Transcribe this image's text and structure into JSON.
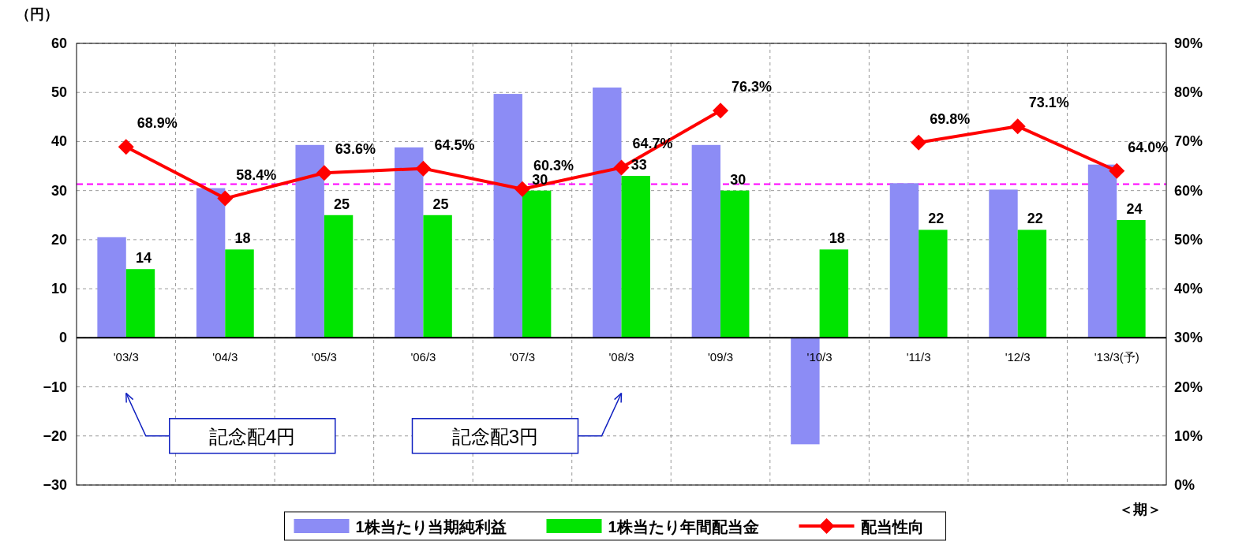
{
  "chart_data": {
    "type": "bar",
    "ylabel": "（円）",
    "xlabel": "＜期＞",
    "categories": [
      "'03/3",
      "'04/3",
      "'05/3",
      "'06/3",
      "'07/3",
      "'08/3",
      "'09/3",
      "'10/3",
      "'11/3",
      "'12/3",
      "'13/3(予)"
    ],
    "series": [
      {
        "name": "1株当たり当期純利益",
        "color": "#8c8cf5",
        "values": [
          20.5,
          30.5,
          39.3,
          38.8,
          49.7,
          51,
          39.3,
          -21.7,
          31.5,
          30.2,
          35.3
        ]
      },
      {
        "name": "1株当たり年間配当金",
        "color": "#00e400",
        "values": [
          14,
          18,
          25,
          25,
          30,
          33,
          30,
          18,
          22,
          22,
          24
        ],
        "value_labels": [
          "14",
          "18",
          "25",
          "25",
          "30",
          "33",
          "30",
          "18",
          "22",
          "22",
          "24"
        ]
      },
      {
        "name": "配当性向",
        "type": "line",
        "axis": "y2",
        "color": "#ff0000",
        "marker": "diamond",
        "values": [
          68.9,
          58.4,
          63.6,
          64.5,
          60.3,
          64.7,
          76.3,
          null,
          69.8,
          73.1,
          64.0
        ],
        "value_labels": [
          "68.9%",
          "58.4%",
          "63.6%",
          "64.5%",
          "60.3%",
          "64.7%",
          "76.3%",
          null,
          "69.8%",
          "73.1%",
          "64.0%"
        ]
      }
    ],
    "ylim": [
      -30,
      60
    ],
    "yticks": [
      -30,
      -20,
      -10,
      0,
      10,
      20,
      30,
      40,
      50,
      60
    ],
    "y2lim": [
      0,
      90
    ],
    "y2ticks": [
      {
        "value": 0,
        "label": "0%"
      },
      {
        "value": 10,
        "label": "10%"
      },
      {
        "value": 20,
        "label": "20%"
      },
      {
        "value": 30,
        "label": "30%"
      },
      {
        "value": 40,
        "label": "40%"
      },
      {
        "value": 50,
        "label": "50%"
      },
      {
        "value": 60,
        "label": "60%"
      },
      {
        "value": 70,
        "label": "70%"
      },
      {
        "value": 80,
        "label": "80%"
      },
      {
        "value": 90,
        "label": "90%"
      }
    ],
    "ref_lines": [
      {
        "axis": "y",
        "value": 31.3,
        "color": "#ff00ff",
        "line_style": "dashed"
      }
    ],
    "annotations": [
      "記念配4円",
      "記念配3円"
    ],
    "grid": true,
    "legend": "bottom"
  }
}
